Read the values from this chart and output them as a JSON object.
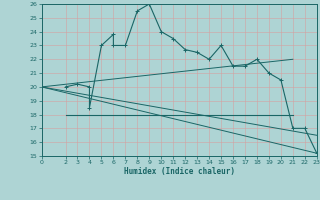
{
  "xlabel": "Humidex (Indice chaleur)",
  "bg_color": "#aed4d4",
  "grid_color": "#c8e8e8",
  "line_color": "#1a6666",
  "xlim": [
    0,
    23
  ],
  "ylim": [
    15,
    26
  ],
  "yticks": [
    15,
    16,
    17,
    18,
    19,
    20,
    21,
    22,
    23,
    24,
    25,
    26
  ],
  "xticks": [
    0,
    2,
    3,
    4,
    5,
    6,
    7,
    8,
    9,
    10,
    11,
    12,
    13,
    14,
    15,
    16,
    17,
    18,
    19,
    20,
    21,
    22,
    23
  ],
  "main_curve_x": [
    2,
    3,
    4,
    4,
    5,
    6,
    6,
    7,
    8,
    9,
    10,
    11,
    12,
    13,
    14,
    15,
    16,
    17,
    18,
    19,
    20,
    21,
    22,
    23
  ],
  "main_curve_y": [
    20,
    20.2,
    20,
    18.5,
    23,
    23.8,
    23,
    23,
    25.5,
    26,
    24,
    23.5,
    22.7,
    22.5,
    22,
    23,
    21.5,
    21.5,
    22,
    21,
    20.5,
    17,
    17,
    15.2
  ],
  "diag_line1_x": [
    0,
    21
  ],
  "diag_line1_y": [
    20,
    22
  ],
  "diag_line2_x": [
    0,
    23
  ],
  "diag_line2_y": [
    20,
    15.2
  ],
  "flat_line_x": [
    2,
    21
  ],
  "flat_line_y": [
    18,
    18
  ],
  "declining_line_x": [
    0,
    23
  ],
  "declining_line_y": [
    20,
    16.5
  ],
  "marker_size": 2.5
}
